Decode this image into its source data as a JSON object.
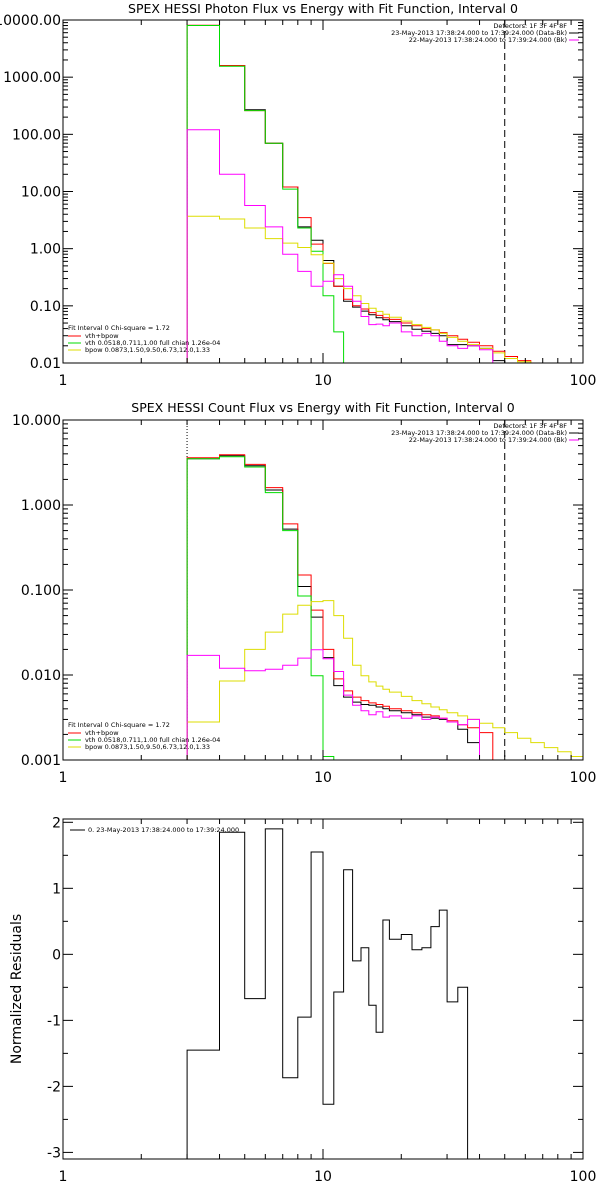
{
  "colors": {
    "axis": "#000000",
    "data": "#000000",
    "sum": "#ff0000",
    "vth": "#00dd00",
    "bpow": "#dddd00",
    "bk": "#ff00ff"
  },
  "chart_data": [
    {
      "type": "line",
      "title": "SPEX HESSI Photon Flux vs Energy with Fit Function, Interval 0",
      "xlabel": "",
      "ylabel": "",
      "xscale": "log",
      "yscale": "log",
      "xlim": [
        1,
        100
      ],
      "ylim": [
        0.01,
        10000
      ],
      "xticks": [
        "1",
        "10",
        "100"
      ],
      "yticks": [
        {
          "v": 0.01,
          "label": "0.01"
        },
        {
          "v": 0.1,
          "label": "0.10"
        },
        {
          "v": 1,
          "label": "1.00"
        },
        {
          "v": 10,
          "label": "10.00"
        },
        {
          "v": 100,
          "label": "100.00"
        },
        {
          "v": 1000,
          "label": "1000.00"
        },
        {
          "v": 10000,
          "label": "10000.00"
        }
      ],
      "vlines": [
        {
          "x": 3,
          "style": "dotted",
          "color": "bpow"
        },
        {
          "x": 50,
          "style": "dashed",
          "color": "data"
        }
      ],
      "info": [
        "Detectors: 1F 3F 4F 8F",
        "23-May-2013 17:38:24.000 to 17:39:24.000 (Data-Bk)",
        "22-May-2013 17:38:24.000 to 17:39:24.000 (Bk)"
      ],
      "info_colors": [
        "",
        "data",
        "bk"
      ],
      "legend_title": "Fit Interval  0   Chi-square = 1.72",
      "legend": [
        {
          "label": "vth+bpow",
          "color": "sum"
        },
        {
          "label": "vth 0.0518,0.711,1.00  full chian 1.26e-04",
          "color": "vth"
        },
        {
          "label": "bpow 0.0873,1.50,9.50,6.73,12.0,1.33",
          "color": "bpow"
        }
      ],
      "edges": [
        3,
        4,
        5,
        6,
        7,
        8,
        9,
        10,
        11,
        12,
        13,
        14,
        15,
        16,
        17,
        18,
        20,
        22,
        24,
        26,
        28,
        30,
        33,
        36,
        40,
        45,
        50,
        56,
        63
      ],
      "series": [
        {
          "name": "data",
          "color": "data",
          "values": [
            8000,
            1600,
            270,
            70,
            12,
            2.4,
            1.4,
            0.62,
            0.22,
            0.12,
            0.095,
            0.081,
            0.07,
            0.062,
            0.057,
            0.053,
            0.045,
            0.039,
            0.036,
            0.033,
            0.03,
            0.021,
            0.021,
            0.02,
            0.018,
            0.011
          ]
        },
        {
          "name": "vth+bpow",
          "color": "sum",
          "values": [
            8100,
            1600,
            260,
            70,
            12,
            3.5,
            1.2,
            0.55,
            0.22,
            0.13,
            0.1,
            0.088,
            0.076,
            0.068,
            0.062,
            0.058,
            0.05,
            0.045,
            0.04,
            0.038,
            0.034,
            0.03,
            0.026,
            0.023,
            0.02,
            0.016,
            0.013,
            0.011
          ]
        },
        {
          "name": "vth",
          "color": "vth",
          "values": [
            8000,
            1550,
            260,
            70,
            11,
            2.3,
            0.9,
            0.15,
            0.035,
            0.009
          ]
        },
        {
          "name": "bpow",
          "color": "bpow",
          "values": [
            3.7,
            3.3,
            2.3,
            1.5,
            1.25,
            1.05,
            0.78,
            0.56,
            0.3,
            0.2,
            0.15,
            0.11,
            0.091,
            0.08,
            0.071,
            0.063,
            0.054,
            0.047,
            0.042,
            0.038,
            0.033,
            0.028,
            0.024,
            0.021,
            0.018,
            0.015,
            0.012,
            0.0105
          ]
        },
        {
          "name": "bk",
          "color": "bk",
          "values": [
            120,
            20,
            5.7,
            2.4,
            0.8,
            0.4,
            0.22,
            0.27,
            0.35,
            0.22,
            0.12,
            0.065,
            0.047,
            0.048,
            0.045,
            0.05,
            0.035,
            0.03,
            0.033,
            0.03,
            0.024,
            0.02,
            0.018,
            0.02,
            0.017
          ]
        }
      ]
    },
    {
      "type": "line",
      "title": "SPEX HESSI Count Flux vs Energy with Fit Function, Interval 0",
      "xlabel": "",
      "ylabel": "",
      "xscale": "log",
      "yscale": "log",
      "xlim": [
        1,
        100
      ],
      "ylim": [
        0.001,
        10
      ],
      "xticks": [
        "1",
        "10",
        "100"
      ],
      "yticks": [
        {
          "v": 0.001,
          "label": "0.001"
        },
        {
          "v": 0.01,
          "label": "0.010"
        },
        {
          "v": 0.1,
          "label": "0.100"
        },
        {
          "v": 1,
          "label": "1.000"
        },
        {
          "v": 10,
          "label": "10.000"
        }
      ],
      "vlines": [
        {
          "x": 3,
          "style": "dotted",
          "color": "data"
        },
        {
          "x": 50,
          "style": "dashed",
          "color": "data"
        }
      ],
      "info": [
        "Detectors: 1F 3F 4F 8F",
        "23-May-2013 17:38:24.000 to 17:39:24.000 (Data-Bk)",
        "22-May-2013 17:38:24.000 to 17:39:24.000 (Bk)"
      ],
      "info_colors": [
        "",
        "data",
        "bk"
      ],
      "legend_title": "Fit Interval  0   Chi-square = 1.72",
      "legend": [
        {
          "label": "vth+bpow",
          "color": "sum"
        },
        {
          "label": "vth 0.0518,0.711,1.00  full chian 1.26e-04",
          "color": "vth"
        },
        {
          "label": "bpow 0.0873,1.50,9.50,6.73,12.0,1.33",
          "color": "bpow"
        }
      ],
      "edges": [
        3,
        4,
        5,
        6,
        7,
        8,
        9,
        10,
        11,
        12,
        13,
        14,
        15,
        16,
        17,
        18,
        20,
        22,
        24,
        26,
        28,
        30,
        33,
        36,
        40,
        45,
        50,
        56,
        63,
        71,
        80,
        90,
        100
      ],
      "series": [
        {
          "name": "data",
          "color": "data",
          "values": [
            3.5,
            3.8,
            2.9,
            1.5,
            0.52,
            0.11,
            0.048,
            0.016,
            0.0075,
            0.0055,
            0.0048,
            0.0045,
            0.0044,
            0.0042,
            0.004,
            0.0038,
            0.0036,
            0.0034,
            0.0032,
            0.0031,
            0.003,
            0.0028,
            0.0023,
            0.0016
          ]
        },
        {
          "name": "vth+bpow",
          "color": "sum",
          "values": [
            3.6,
            3.9,
            3.0,
            1.6,
            0.6,
            0.15,
            0.058,
            0.02,
            0.009,
            0.0065,
            0.0055,
            0.005,
            0.0047,
            0.0045,
            0.0043,
            0.004,
            0.0038,
            0.0036,
            0.0034,
            0.0033,
            0.0031,
            0.0029,
            0.0026,
            0.0024,
            0.0021
          ]
        },
        {
          "name": "vth",
          "color": "vth",
          "values": [
            3.5,
            3.7,
            2.8,
            1.4,
            0.5,
            0.085,
            0.0098,
            0.0011
          ]
        },
        {
          "name": "bpow",
          "color": "bpow",
          "values": [
            0.0028,
            0.0085,
            0.02,
            0.032,
            0.052,
            0.066,
            0.073,
            0.075,
            0.05,
            0.027,
            0.013,
            0.0098,
            0.0083,
            0.0074,
            0.0068,
            0.0063,
            0.0056,
            0.005,
            0.0046,
            0.0042,
            0.0039,
            0.0036,
            0.0033,
            0.003,
            0.0027,
            0.0024,
            0.0021,
            0.0018,
            0.0016,
            0.0014,
            0.00125,
            0.0011
          ]
        },
        {
          "name": "bk",
          "color": "bk",
          "values": [
            0.017,
            0.012,
            0.0112,
            0.0117,
            0.013,
            0.0158,
            0.0198,
            0.0155,
            0.011,
            0.0058,
            0.0044,
            0.0038,
            0.0034,
            0.0037,
            0.0032,
            0.0033,
            0.0031,
            0.0033,
            0.003,
            0.0032,
            0.0031,
            0.0028,
            0.0026,
            0.003
          ]
        }
      ]
    },
    {
      "type": "line",
      "title": "",
      "xlabel": "",
      "ylabel": "Normalized Residuals",
      "xscale": "log",
      "yscale": "linear",
      "xlim": [
        1,
        100
      ],
      "ylim": [
        -3.1,
        2.05
      ],
      "xticks": [
        "1",
        "10",
        "100"
      ],
      "yticks": [
        {
          "v": -3,
          "label": "-3"
        },
        {
          "v": -2,
          "label": "-2"
        },
        {
          "v": -1,
          "label": "-1"
        },
        {
          "v": 0,
          "label": "0"
        },
        {
          "v": 1,
          "label": "1"
        },
        {
          "v": 2,
          "label": "2"
        }
      ],
      "legend": [
        {
          "label": "0. 23-May-2013 17:38:24.000 to 17:39:24.000",
          "color": "data"
        }
      ],
      "edges": [
        3,
        4,
        5,
        6,
        7,
        8,
        9,
        10,
        11,
        12,
        13,
        14,
        15,
        16,
        17,
        18,
        20,
        22,
        24,
        26,
        28,
        30,
        33,
        36,
        40,
        45,
        50
      ],
      "series": [
        {
          "name": "",
          "color": "data",
          "values": [
            -1.45,
            1.85,
            -0.67,
            1.9,
            -1.87,
            -0.95,
            1.55,
            -2.27,
            -0.57,
            1.28,
            -0.1,
            0.1,
            -0.77,
            -1.18,
            0.52,
            0.23,
            0.3,
            0.07,
            0.1,
            0.42,
            0.67,
            -0.72,
            -0.5
          ]
        }
      ]
    }
  ]
}
